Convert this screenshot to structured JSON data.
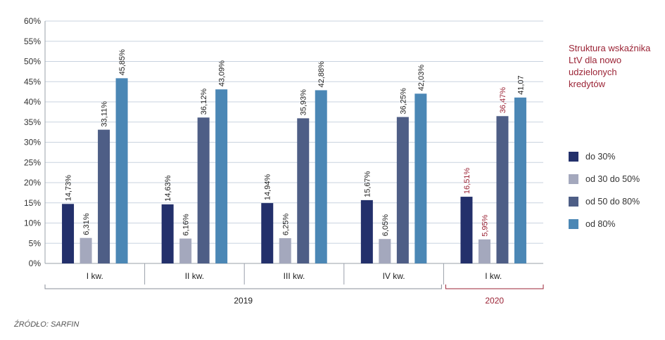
{
  "chart_data": {
    "type": "bar",
    "title": "Struktura wskaźnika LtV dla nowo udzielonych kredytów",
    "categories": [
      "I kw.",
      "II kw.",
      "III kw.",
      "IV kw.",
      "I kw."
    ],
    "groups": [
      {
        "label": "2019",
        "span": [
          0,
          3
        ],
        "color": "#222222"
      },
      {
        "label": "2020",
        "span": [
          4,
          4
        ],
        "color": "#9b2335"
      }
    ],
    "series": [
      {
        "name": "do 30%",
        "color": "#23306b",
        "values": [
          14.73,
          14.63,
          14.94,
          15.67,
          16.51
        ],
        "labels": [
          "14,73%",
          "14,63%",
          "14,94%",
          "15,67%",
          "16,51%"
        ]
      },
      {
        "name": "od 30 do 50%",
        "color": "#a4a8bd",
        "values": [
          6.31,
          6.16,
          6.25,
          6.05,
          5.95
        ],
        "labels": [
          "6,31%",
          "6,16%",
          "6,25%",
          "6,05%",
          "5,95%"
        ]
      },
      {
        "name": "od 50 do 80%",
        "color": "#4e5e86",
        "values": [
          33.11,
          36.12,
          35.93,
          36.25,
          36.47
        ],
        "labels": [
          "33,11%",
          "36,12%",
          "35,93%",
          "36,25%",
          "36,47%"
        ]
      },
      {
        "name": "od 80%",
        "color": "#4b87b5",
        "values": [
          45.85,
          43.09,
          42.88,
          42.03,
          41.07
        ],
        "labels": [
          "45,85%",
          "43,09%",
          "42,88%",
          "42,03%",
          "41,07"
        ]
      }
    ],
    "highlight_label_color": "#9b2335",
    "highlight_categories": [
      4
    ],
    "highlight_series": [
      0,
      1,
      2
    ],
    "yticks": [
      "0%",
      "5%",
      "10%",
      "15%",
      "20%",
      "25%",
      "30%",
      "35%",
      "40%",
      "45%",
      "50%",
      "55%",
      "60%"
    ],
    "ylim": [
      0,
      60
    ],
    "grid": true,
    "legend_position": "right"
  },
  "source": "ŹRÓDŁO: SARFIN"
}
